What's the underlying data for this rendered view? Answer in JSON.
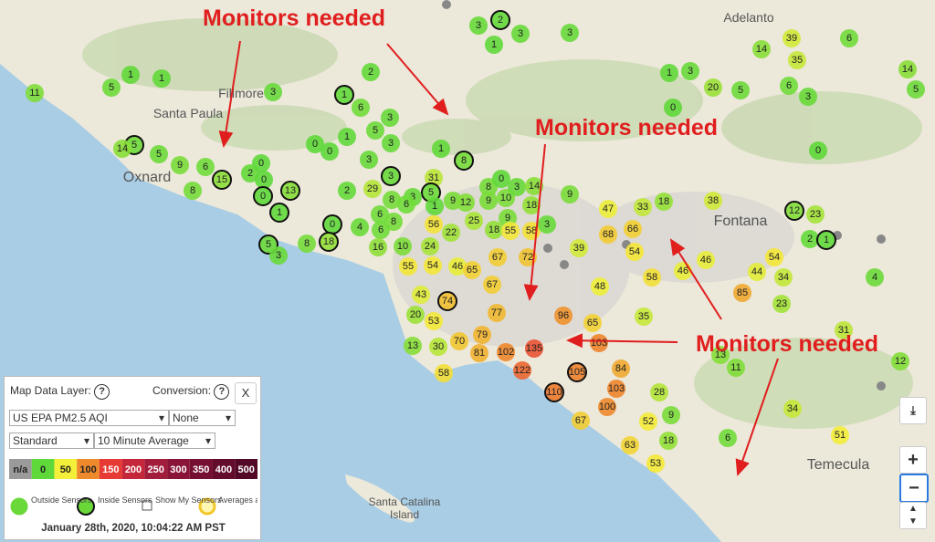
{
  "places": [
    "Adelanto",
    "Fillmore",
    "Santa Paula",
    "Oxnard",
    "Fontana",
    "Temecula",
    "Santa Catalina",
    "Island"
  ],
  "annotations": [
    "Monitors needed",
    "Monitors needed",
    "Monitors needed"
  ],
  "sensors": {
    "values": [
      2,
      3,
      3,
      1,
      3,
      1,
      1,
      5,
      11,
      2,
      3,
      1,
      6,
      3,
      5,
      1,
      0,
      0,
      3,
      3,
      1,
      8,
      5,
      14,
      5,
      9,
      6,
      2,
      0,
      15,
      8,
      0,
      0,
      13,
      1,
      2,
      29,
      3,
      31,
      5,
      3,
      8,
      6,
      8,
      1,
      9,
      12,
      8,
      0,
      9,
      10,
      3,
      14,
      18,
      9,
      25,
      56,
      22,
      18,
      55,
      58,
      3,
      9,
      47,
      33,
      18,
      38,
      12,
      23,
      2,
      1,
      1,
      3,
      20,
      0,
      5,
      6,
      3,
      14,
      39,
      35,
      6,
      14,
      5,
      0,
      0,
      4,
      6,
      6,
      16,
      10,
      24,
      18,
      8,
      5,
      3,
      66,
      68,
      39,
      54,
      58,
      46,
      46,
      44,
      54,
      34,
      85,
      23,
      4,
      48,
      55,
      54,
      46,
      65,
      67,
      72,
      67,
      43,
      74,
      20,
      53,
      77,
      96,
      65,
      35,
      31,
      79,
      70,
      13,
      30,
      81,
      102,
      135,
      103,
      122,
      105,
      110,
      84,
      103,
      13,
      11,
      12,
      58,
      100,
      28,
      9,
      67,
      52,
      18,
      63,
      34,
      6,
      51,
      53
    ],
    "inside": [
      true,
      false,
      false,
      false,
      false,
      false,
      false,
      false,
      false,
      false,
      false,
      true,
      false,
      false,
      false,
      false,
      false,
      false,
      false,
      false,
      false,
      true,
      true,
      false,
      false,
      false,
      false,
      false,
      false,
      true,
      false,
      false,
      true,
      true,
      true,
      false,
      false,
      true,
      false,
      true,
      false,
      false,
      false,
      false,
      false,
      false,
      false,
      false,
      false,
      false,
      false,
      false,
      false,
      false,
      false,
      false,
      false,
      false,
      false,
      false,
      false,
      false,
      false,
      false,
      false,
      false,
      false,
      true,
      false,
      false,
      true,
      false,
      false,
      false,
      false,
      false,
      false,
      false,
      false,
      false,
      false,
      false,
      false,
      false,
      false,
      true,
      false,
      false,
      false,
      false,
      false,
      false,
      true,
      false,
      true,
      false,
      false,
      false,
      false,
      false,
      false,
      false,
      false,
      false,
      false,
      false,
      false,
      false,
      false,
      false,
      false,
      false,
      false,
      false,
      false,
      false,
      false,
      false,
      true,
      false,
      false,
      false,
      false,
      false,
      false,
      false,
      false,
      false,
      false,
      false,
      false,
      false,
      false,
      false,
      false,
      true,
      true,
      false,
      false,
      false,
      false,
      false,
      false,
      false,
      false,
      false,
      false,
      false,
      false,
      false,
      false,
      false,
      false,
      false
    ]
  },
  "panel": {
    "layer_label": "Map Data Layer:",
    "layer_help": "?",
    "conversion_label": "Conversion:",
    "conversion_help": "?",
    "close": "X",
    "layer": "US EPA PM2.5 AQI",
    "conversion": "None",
    "style": "Standard",
    "average": "10 Minute Average",
    "legend": [
      {
        "label": "n/a",
        "color": "#9a9a9a"
      },
      {
        "value": 0,
        "color": "#5fd83a"
      },
      {
        "value": 50,
        "color": "#f4ef38"
      },
      {
        "value": 100,
        "color": "#ee8a2c"
      },
      {
        "value": 150,
        "color": "#e83a34"
      },
      {
        "value": 200,
        "color": "#c4263a"
      },
      {
        "value": 250,
        "color": "#a21c3c"
      },
      {
        "value": 300,
        "color": "#8a1438"
      },
      {
        "value": 350,
        "color": "#761032"
      },
      {
        "value": 400,
        "color": "#640c2c"
      },
      {
        "value": 500,
        "color": "#520826"
      }
    ],
    "options": [
      "Outside Sensors",
      "Inside Sensors",
      "Show My Sensors",
      "Averages as Rings"
    ],
    "timestamp": "January 28th, 2020, 10:04:22 AM PST"
  },
  "zoom": {
    "in": "+",
    "out": "−"
  }
}
